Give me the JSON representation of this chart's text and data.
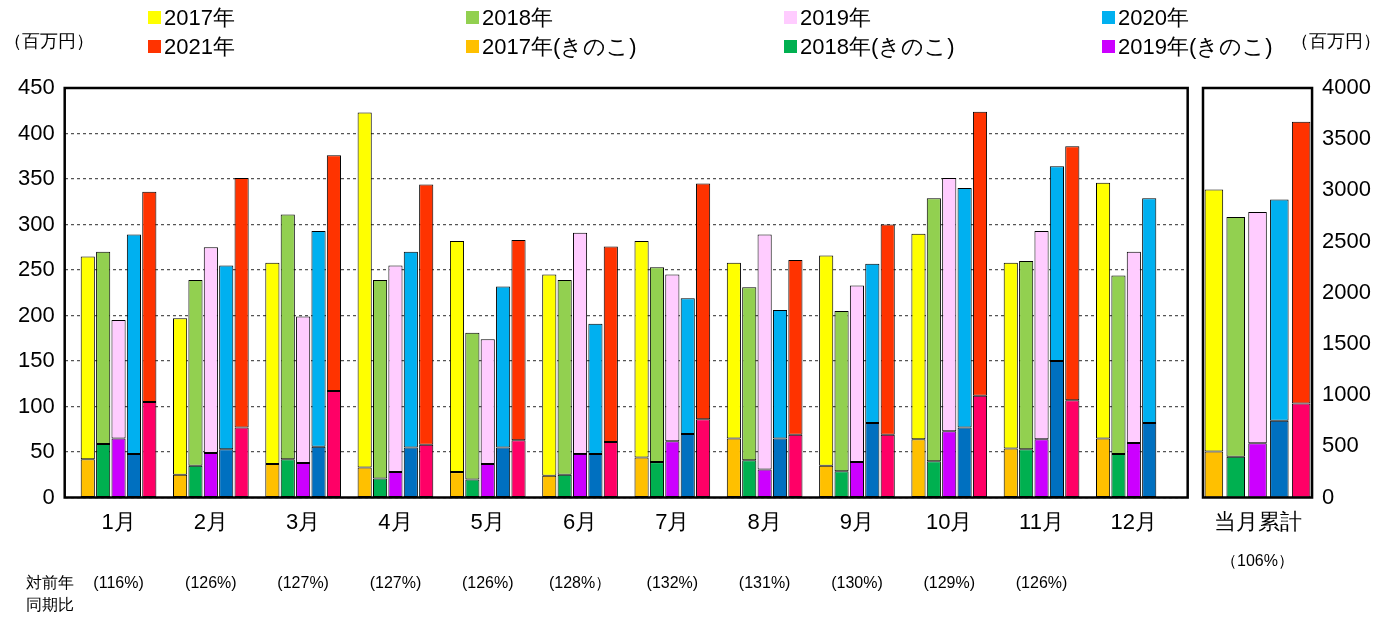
{
  "chart_data": [
    {
      "type": "bar",
      "ylabel": "（百万円）",
      "stacked": true,
      "categories": [
        null,
        null,
        null,
        "1月",
        null,
        null,
        null,
        null,
        null,
        "2月",
        null,
        null,
        null,
        null,
        null,
        "3月",
        null,
        null,
        null,
        null,
        null,
        "4月",
        null,
        null,
        null,
        null,
        null,
        "5月",
        null,
        null,
        null,
        null,
        null,
        "6月",
        null,
        null,
        null,
        null,
        null,
        "7月",
        null,
        null,
        null,
        null,
        null,
        "8月",
        null,
        null,
        null,
        null,
        null,
        "9月",
        null,
        null,
        null,
        null,
        null,
        "10月",
        null,
        null,
        null,
        null,
        null,
        "11月",
        null,
        null,
        null,
        null,
        null,
        "12月",
        null,
        null,
        null
      ],
      "series": [
        {
          "name": "2017年(きのこ)",
          "color": "#ffc000",
          "values": [
            null,
            42,
            null,
            null,
            null,
            null,
            null,
            25,
            null,
            null,
            null,
            null,
            null,
            37,
            null,
            null,
            null,
            null,
            null,
            33,
            null,
            null,
            null,
            null,
            null,
            28,
            null,
            null,
            null,
            null,
            null,
            24,
            null,
            null,
            null,
            null,
            null,
            44,
            null,
            null,
            null,
            null,
            null,
            65,
            null,
            null,
            null,
            null,
            null,
            35,
            null,
            null,
            null,
            null,
            null,
            64,
            null,
            null,
            null,
            null,
            null,
            54,
            null,
            null,
            null,
            null,
            null,
            65,
            null,
            null,
            null,
            null,
            null
          ]
        },
        {
          "name": "2018年(きのこ)",
          "color": "#00b050",
          "values": [
            null,
            null,
            59,
            null,
            null,
            null,
            null,
            null,
            35,
            null,
            null,
            null,
            null,
            null,
            42,
            null,
            null,
            null,
            null,
            null,
            21,
            null,
            null,
            null,
            null,
            null,
            20,
            null,
            null,
            null,
            null,
            null,
            25,
            null,
            null,
            null,
            null,
            null,
            39,
            null,
            null,
            null,
            null,
            null,
            41,
            null,
            null,
            null,
            null,
            null,
            29,
            null,
            null,
            null,
            null,
            null,
            40,
            null,
            null,
            null,
            null,
            null,
            53,
            null,
            null,
            null,
            null,
            null,
            48,
            null,
            null,
            null,
            null
          ]
        },
        {
          "name": "2019年(きのこ)",
          "color": "#cc00ff",
          "values": [
            null,
            null,
            null,
            65,
            null,
            null,
            null,
            null,
            null,
            49,
            null,
            null,
            null,
            null,
            null,
            38,
            null,
            null,
            null,
            null,
            null,
            28,
            null,
            null,
            null,
            null,
            null,
            37,
            null,
            null,
            null,
            null,
            null,
            48,
            null,
            null,
            null,
            null,
            null,
            62,
            null,
            null,
            null,
            null,
            null,
            31,
            null,
            null,
            null,
            null,
            null,
            39,
            null,
            null,
            null,
            null,
            null,
            73,
            null,
            null,
            null,
            null,
            null,
            64,
            null,
            null,
            null,
            null,
            null,
            60,
            null,
            null,
            null
          ]
        },
        {
          "color": "#0070c0",
          "values": [
            null,
            null,
            null,
            null,
            48,
            null,
            null,
            null,
            null,
            null,
            53,
            null,
            null,
            null,
            null,
            null,
            56,
            null,
            null,
            null,
            null,
            null,
            55,
            null,
            null,
            null,
            null,
            null,
            55,
            null,
            null,
            null,
            null,
            null,
            48,
            null,
            null,
            null,
            null,
            null,
            70,
            null,
            null,
            null,
            null,
            null,
            65,
            null,
            null,
            null,
            null,
            null,
            82,
            null,
            null,
            null,
            null,
            null,
            77,
            null,
            null,
            null,
            null,
            null,
            150,
            null,
            null,
            null,
            null,
            null,
            82,
            null,
            null
          ]
        },
        {
          "color": "#ff0066",
          "values": [
            null,
            null,
            null,
            null,
            null,
            105,
            null,
            null,
            null,
            null,
            null,
            77,
            null,
            null,
            null,
            null,
            null,
            117,
            null,
            null,
            null,
            null,
            null,
            58,
            null,
            null,
            null,
            null,
            null,
            63,
            null,
            null,
            null,
            null,
            null,
            61,
            null,
            null,
            null,
            null,
            null,
            86,
            null,
            null,
            null,
            null,
            null,
            69,
            null,
            null,
            null,
            null,
            null,
            69,
            null,
            null,
            null,
            null,
            null,
            112,
            null,
            null,
            null,
            null,
            null,
            107,
            null,
            null,
            null,
            null,
            null,
            null,
            null
          ]
        },
        {
          "name": "2017年",
          "color": "#ffff00",
          "values": [
            null,
            223,
            null,
            null,
            null,
            null,
            null,
            172,
            null,
            null,
            null,
            null,
            null,
            221,
            null,
            null,
            null,
            null,
            null,
            390,
            null,
            null,
            null,
            null,
            null,
            254,
            null,
            null,
            null,
            null,
            null,
            221,
            null,
            null,
            null,
            null,
            null,
            238,
            null,
            null,
            null,
            null,
            null,
            193,
            null,
            null,
            null,
            null,
            null,
            231,
            null,
            null,
            null,
            null,
            null,
            226,
            null,
            null,
            null,
            null,
            null,
            204,
            null,
            null,
            null,
            null,
            null,
            281,
            null,
            null,
            null,
            null,
            null
          ]
        },
        {
          "name": "2018年",
          "color": "#92d050",
          "values": [
            null,
            null,
            211,
            null,
            null,
            null,
            null,
            null,
            204,
            null,
            null,
            null,
            null,
            null,
            269,
            null,
            null,
            null,
            null,
            null,
            218,
            null,
            null,
            null,
            null,
            null,
            161,
            null,
            null,
            null,
            null,
            null,
            214,
            null,
            null,
            null,
            null,
            null,
            214,
            null,
            null,
            null,
            null,
            null,
            190,
            null,
            null,
            null,
            null,
            null,
            176,
            null,
            null,
            null,
            null,
            null,
            289,
            null,
            null,
            null,
            null,
            null,
            207,
            null,
            null,
            null,
            null,
            null,
            196,
            null,
            null,
            null,
            null
          ]
        },
        {
          "name": "2019年",
          "color": "#ffccff",
          "values": [
            null,
            null,
            null,
            130,
            null,
            null,
            null,
            null,
            null,
            226,
            null,
            null,
            null,
            null,
            null,
            161,
            null,
            null,
            null,
            null,
            null,
            227,
            null,
            null,
            null,
            null,
            null,
            137,
            null,
            null,
            null,
            null,
            null,
            243,
            null,
            null,
            null,
            null,
            null,
            183,
            null,
            null,
            null,
            null,
            null,
            258,
            null,
            null,
            null,
            null,
            null,
            194,
            null,
            null,
            null,
            null,
            null,
            278,
            null,
            null,
            null,
            null,
            null,
            229,
            null,
            null,
            null,
            null,
            null,
            210,
            null,
            null,
            null
          ]
        },
        {
          "name": "2020年",
          "color": "#00b0f0",
          "values": [
            null,
            null,
            null,
            null,
            241,
            null,
            null,
            null,
            null,
            null,
            202,
            null,
            null,
            null,
            null,
            null,
            237,
            null,
            null,
            null,
            null,
            null,
            215,
            null,
            null,
            null,
            null,
            null,
            177,
            null,
            null,
            null,
            null,
            null,
            143,
            null,
            null,
            null,
            null,
            null,
            149,
            null,
            null,
            null,
            null,
            null,
            141,
            null,
            null,
            null,
            null,
            null,
            175,
            null,
            null,
            null,
            null,
            null,
            263,
            null,
            null,
            null,
            null,
            null,
            214,
            null,
            null,
            null,
            null,
            null,
            247,
            null,
            null
          ]
        },
        {
          "name": "2021年",
          "color": "#ff3300",
          "values": [
            null,
            null,
            null,
            null,
            null,
            231,
            null,
            null,
            null,
            null,
            null,
            274,
            null,
            null,
            null,
            null,
            null,
            259,
            null,
            null,
            null,
            null,
            null,
            286,
            null,
            null,
            null,
            null,
            null,
            220,
            null,
            null,
            null,
            null,
            null,
            215,
            null,
            null,
            null,
            null,
            null,
            259,
            null,
            null,
            null,
            null,
            null,
            192,
            null,
            null,
            null,
            null,
            null,
            231,
            null,
            null,
            null,
            null,
            null,
            312,
            null,
            null,
            null,
            null,
            null,
            279,
            null,
            null,
            null,
            null,
            null,
            null,
            null
          ]
        }
      ],
      "ylim": [
        0,
        450
      ],
      "yticks": [
        0,
        50,
        100,
        150,
        200,
        250,
        300,
        350,
        400,
        450
      ],
      "grid": "y",
      "legend": "top",
      "annotations": [
        "対前年同期比",
        "(116%)",
        "(126%)",
        "(127%)",
        "(127%)",
        "(126%)",
        "(128%）",
        "(132%)",
        "(131%)",
        "(130%)",
        "(129%)",
        "(126%)"
      ]
    },
    {
      "type": "bar",
      "ylabel": "（百万円）",
      "stacked": true,
      "categories": [
        null,
        null,
        "当月累計",
        null,
        null
      ],
      "series": [
        {
          "color": "#ffc000",
          "values": [
            450,
            null,
            null,
            null,
            null
          ]
        },
        {
          "color": "#00b050",
          "values": [
            null,
            400,
            null,
            null,
            null
          ]
        },
        {
          "color": "#cc00ff",
          "values": [
            null,
            null,
            530,
            null,
            null
          ]
        },
        {
          "color": "#0070c0",
          "values": [
            null,
            null,
            null,
            750,
            null
          ]
        },
        {
          "color": "#ff0066",
          "values": [
            null,
            null,
            null,
            null,
            920
          ]
        },
        {
          "color": "#ffff00",
          "values": [
            2560,
            null,
            null,
            null,
            null
          ]
        },
        {
          "color": "#92d050",
          "values": [
            null,
            2340,
            null,
            null,
            null
          ]
        },
        {
          "color": "#ffccff",
          "values": [
            null,
            null,
            2260,
            null,
            null
          ]
        },
        {
          "color": "#00b0f0",
          "values": [
            null,
            null,
            null,
            2160,
            null
          ]
        },
        {
          "color": "#ff3300",
          "values": [
            null,
            null,
            null,
            null,
            2750
          ]
        }
      ],
      "ylim": [
        0,
        4000
      ],
      "yticks": [
        0,
        500,
        1000,
        1500,
        2000,
        2500,
        3000,
        3500,
        4000
      ],
      "annotations": [
        "（106%）"
      ]
    }
  ]
}
